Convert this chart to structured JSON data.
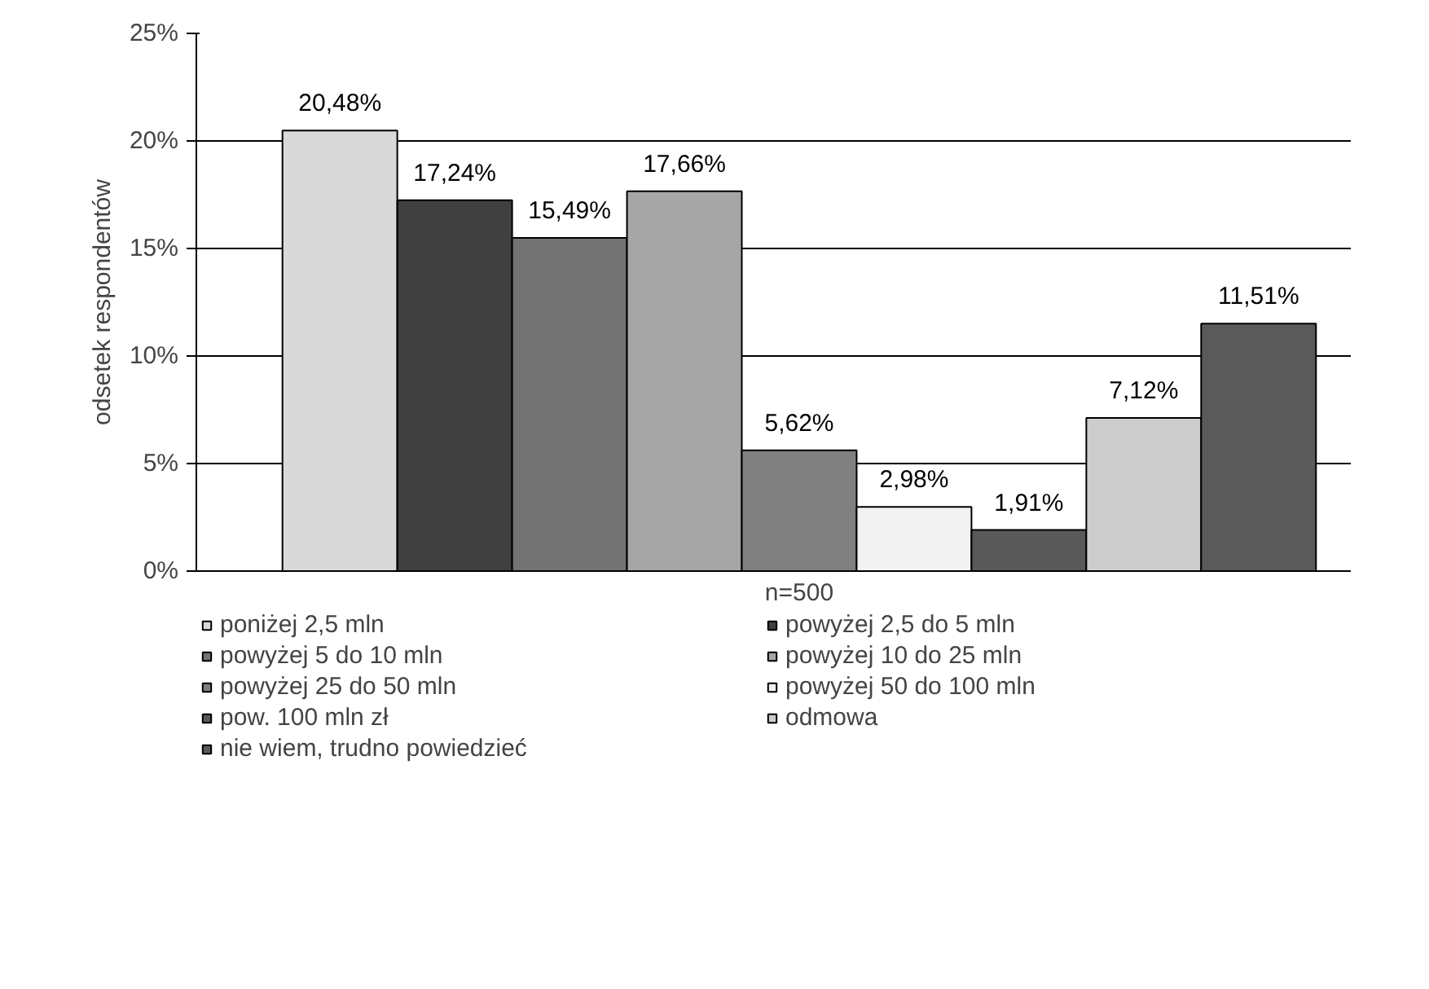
{
  "chart_data": {
    "type": "bar",
    "categories": [
      null
    ],
    "xlabel": "n=500",
    "ylabel": "odsetek respondentów",
    "series": [
      {
        "name": "poniżej 2,5 mln",
        "color": "#d9d9d9",
        "values": [
          20.48
        ],
        "value_labels": [
          "20,48%"
        ]
      },
      {
        "name": "powyżej 2,5 do 5 mln",
        "color": "#404040",
        "values": [
          17.24
        ],
        "value_labels": [
          "17,24%"
        ]
      },
      {
        "name": "powyżej 5 do 10 mln",
        "color": "#737373",
        "values": [
          15.49
        ],
        "value_labels": [
          "15,49%"
        ]
      },
      {
        "name": "powyżej 10 do 25 mln",
        "color": "#a6a6a6",
        "values": [
          17.66
        ],
        "value_labels": [
          "17,66%"
        ]
      },
      {
        "name": "powyżej 25 do 50 mln",
        "color": "#808080",
        "values": [
          5.62
        ],
        "value_labels": [
          "5,62%"
        ]
      },
      {
        "name": "powyżej 50 do 100 mln",
        "color": "#f2f2f2",
        "values": [
          2.98
        ],
        "value_labels": [
          "2,98%"
        ]
      },
      {
        "name": "pow. 100 mln zł",
        "color": "#595959",
        "values": [
          1.91
        ],
        "value_labels": [
          "1,91%"
        ]
      },
      {
        "name": "odmowa",
        "color": "#cccccc",
        "values": [
          7.12
        ],
        "value_labels": [
          "7,12%"
        ]
      },
      {
        "name": "nie wiem, trudno powiedzieć",
        "color": "#5a5a5a",
        "values": [
          11.51
        ],
        "value_labels": [
          "11,51%"
        ]
      }
    ],
    "ylim": [
      0,
      25
    ],
    "yticks": [
      {
        "value": 0,
        "label": "0%"
      },
      {
        "value": 5,
        "label": "5%"
      },
      {
        "value": 10,
        "label": "10%"
      },
      {
        "value": 15,
        "label": "15%"
      },
      {
        "value": 20,
        "label": "20%"
      },
      {
        "value": 25,
        "label": "25%"
      }
    ],
    "grid": "y",
    "legend": "bottom"
  }
}
